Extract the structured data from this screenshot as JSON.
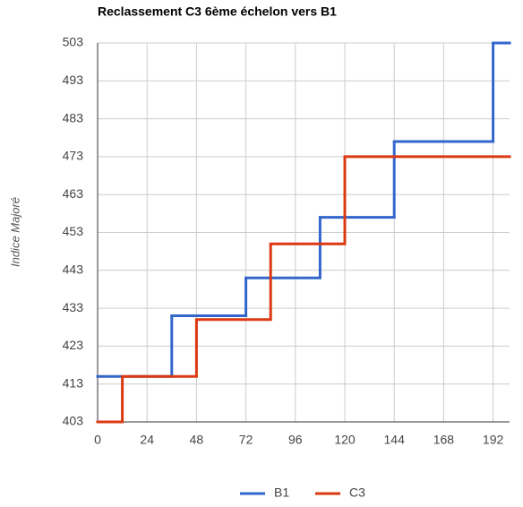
{
  "chart_data": {
    "type": "step",
    "title": "Reclassement C3 6ème échelon vers B1",
    "y_label": "Indice Majoré",
    "xlim": [
      0,
      200
    ],
    "xticks": [
      0,
      24,
      48,
      72,
      96,
      120,
      144,
      168,
      192
    ],
    "ylim": [
      403,
      503
    ],
    "yticks": [
      403,
      413,
      423,
      433,
      443,
      453,
      463,
      473,
      483,
      493,
      503
    ],
    "grid": true,
    "legend": "bottom",
    "series": [
      {
        "name": "B1",
        "color": "#3366cc",
        "x": [
          0,
          36,
          72,
          108,
          144,
          192
        ],
        "values": [
          415,
          431,
          441,
          457,
          477,
          503
        ]
      },
      {
        "name": "C3",
        "color": "#dc3912",
        "x": [
          0,
          12,
          48,
          84,
          120
        ],
        "values": [
          403,
          415,
          430,
          450,
          473
        ]
      }
    ]
  }
}
